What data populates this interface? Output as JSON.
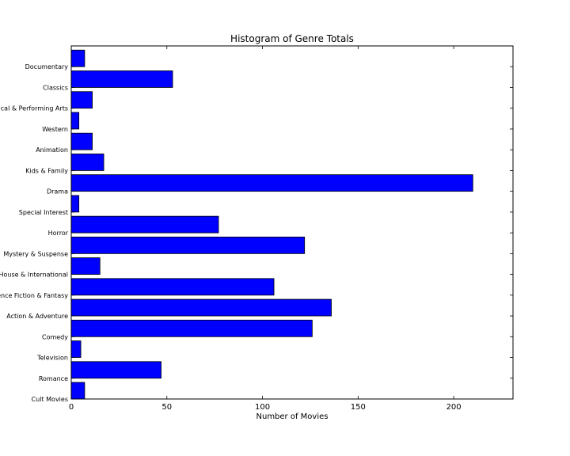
{
  "chart_data": {
    "type": "bar",
    "orientation": "horizontal",
    "title": "Histogram of Genre Totals",
    "xlabel": "Number of Movies",
    "ylabel": "",
    "xlim": [
      0,
      231
    ],
    "xticks": [
      0,
      50,
      100,
      150,
      200
    ],
    "grid": false,
    "bar_color": "#0000ff",
    "categories": [
      "Cult Movies",
      "Romance",
      "Television",
      "Comedy",
      "Action & Adventure",
      "Science Fiction & Fantasy",
      "Art House & International",
      "Mystery & Suspense",
      "Horror",
      "Special Interest",
      "Drama",
      "Kids & Family",
      "Animation",
      "Western",
      "Musical & Performing Arts",
      "Classics",
      "Documentary"
    ],
    "values": [
      7,
      47,
      5,
      126,
      136,
      106,
      15,
      122,
      77,
      4,
      210,
      17,
      11,
      4,
      11,
      53,
      7
    ]
  }
}
